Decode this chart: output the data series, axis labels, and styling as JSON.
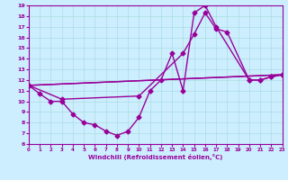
{
  "xlabel": "Windchill (Refroidissement éolien,°C)",
  "bg_color": "#cceeff",
  "line_color": "#990099",
  "grid_color": "#aadddd",
  "series": [
    {
      "x": [
        0,
        1,
        2,
        3,
        4,
        5,
        6,
        7,
        8,
        9,
        10,
        11,
        12,
        13,
        14,
        15,
        16,
        17,
        20,
        21,
        22,
        23
      ],
      "y": [
        11.5,
        10.7,
        10.0,
        10.0,
        8.8,
        8.0,
        7.8,
        7.2,
        6.8,
        7.2,
        8.5,
        11.0,
        12.0,
        14.5,
        11.0,
        18.3,
        19.0,
        17.0,
        12.0,
        12.0,
        12.3,
        12.5
      ]
    },
    {
      "x": [
        0,
        3,
        10,
        14,
        15,
        16,
        17,
        18,
        20,
        21,
        22,
        23
      ],
      "y": [
        11.5,
        10.2,
        10.5,
        14.5,
        16.3,
        18.3,
        16.8,
        16.5,
        12.0,
        12.0,
        12.3,
        12.5
      ]
    },
    {
      "x": [
        0,
        23
      ],
      "y": [
        11.5,
        12.5
      ]
    },
    {
      "x": [
        0,
        23
      ],
      "y": [
        11.5,
        12.5
      ]
    }
  ],
  "xlim": [
    0,
    23
  ],
  "ylim": [
    6,
    19
  ],
  "xticks": [
    0,
    1,
    2,
    3,
    4,
    5,
    6,
    7,
    8,
    9,
    10,
    11,
    12,
    13,
    14,
    15,
    16,
    17,
    18,
    19,
    20,
    21,
    22,
    23
  ],
  "yticks": [
    6,
    7,
    8,
    9,
    10,
    11,
    12,
    13,
    14,
    15,
    16,
    17,
    18,
    19
  ],
  "marker": "D",
  "markersize": 2.5,
  "linewidth": 1.0
}
